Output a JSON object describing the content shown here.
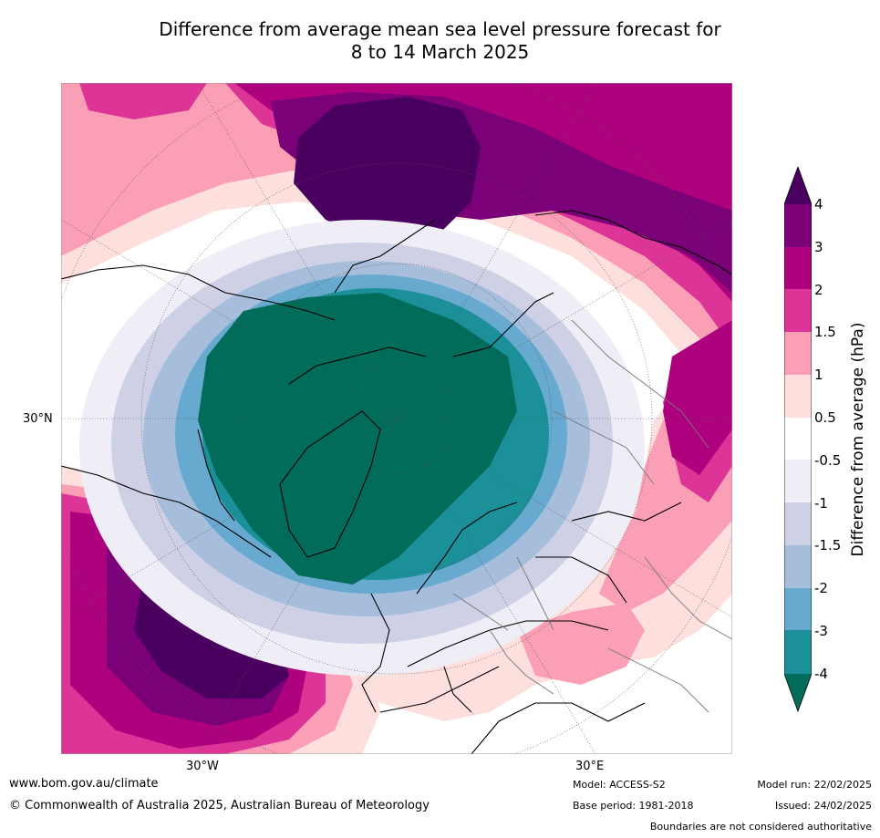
{
  "title_line1": "Difference from average mean sea level pressure forecast for",
  "title_line2": "8 to 14 March 2025",
  "lat_labels": [
    "30°N"
  ],
  "lon_labels": [
    "30°W",
    "30°E"
  ],
  "colorbar": {
    "label": "Difference from average (hPa)",
    "ticks": [
      "4",
      "3",
      "2",
      "1.5",
      "1",
      "0.5",
      "-0.5",
      "-1",
      "-1.5",
      "-2",
      "-3",
      "-4"
    ],
    "colors": {
      "over": "#49005f",
      "3_to_4": "#7a0177",
      "2_to_3": "#ae017e",
      "1_5_to_2": "#dd3497",
      "1_to_1_5": "#fa9fb5",
      "0_5_to_1": "#fde0dd",
      "neutral": "#ffffff",
      "m1_to_m0_5": "#efedf5",
      "m1_5_to_m1": "#ced0e6",
      "m2_to_m1_5": "#a6bddb",
      "m3_to_m2": "#67a9cf",
      "m4_to_m3": "#1c9099",
      "under": "#016c59"
    }
  },
  "footer": {
    "url": "www.bom.gov.au/climate",
    "copyright": "© Commonwealth of Australia 2025, Australian Bureau of Meteorology",
    "model": "Model: ACCESS-S2",
    "base_period": "Base period: 1981-2018",
    "model_run": "Model run: 22/02/2025",
    "issued": "Issued: 24/02/2025",
    "disclaimer": "Boundaries are not considered authoritative"
  }
}
